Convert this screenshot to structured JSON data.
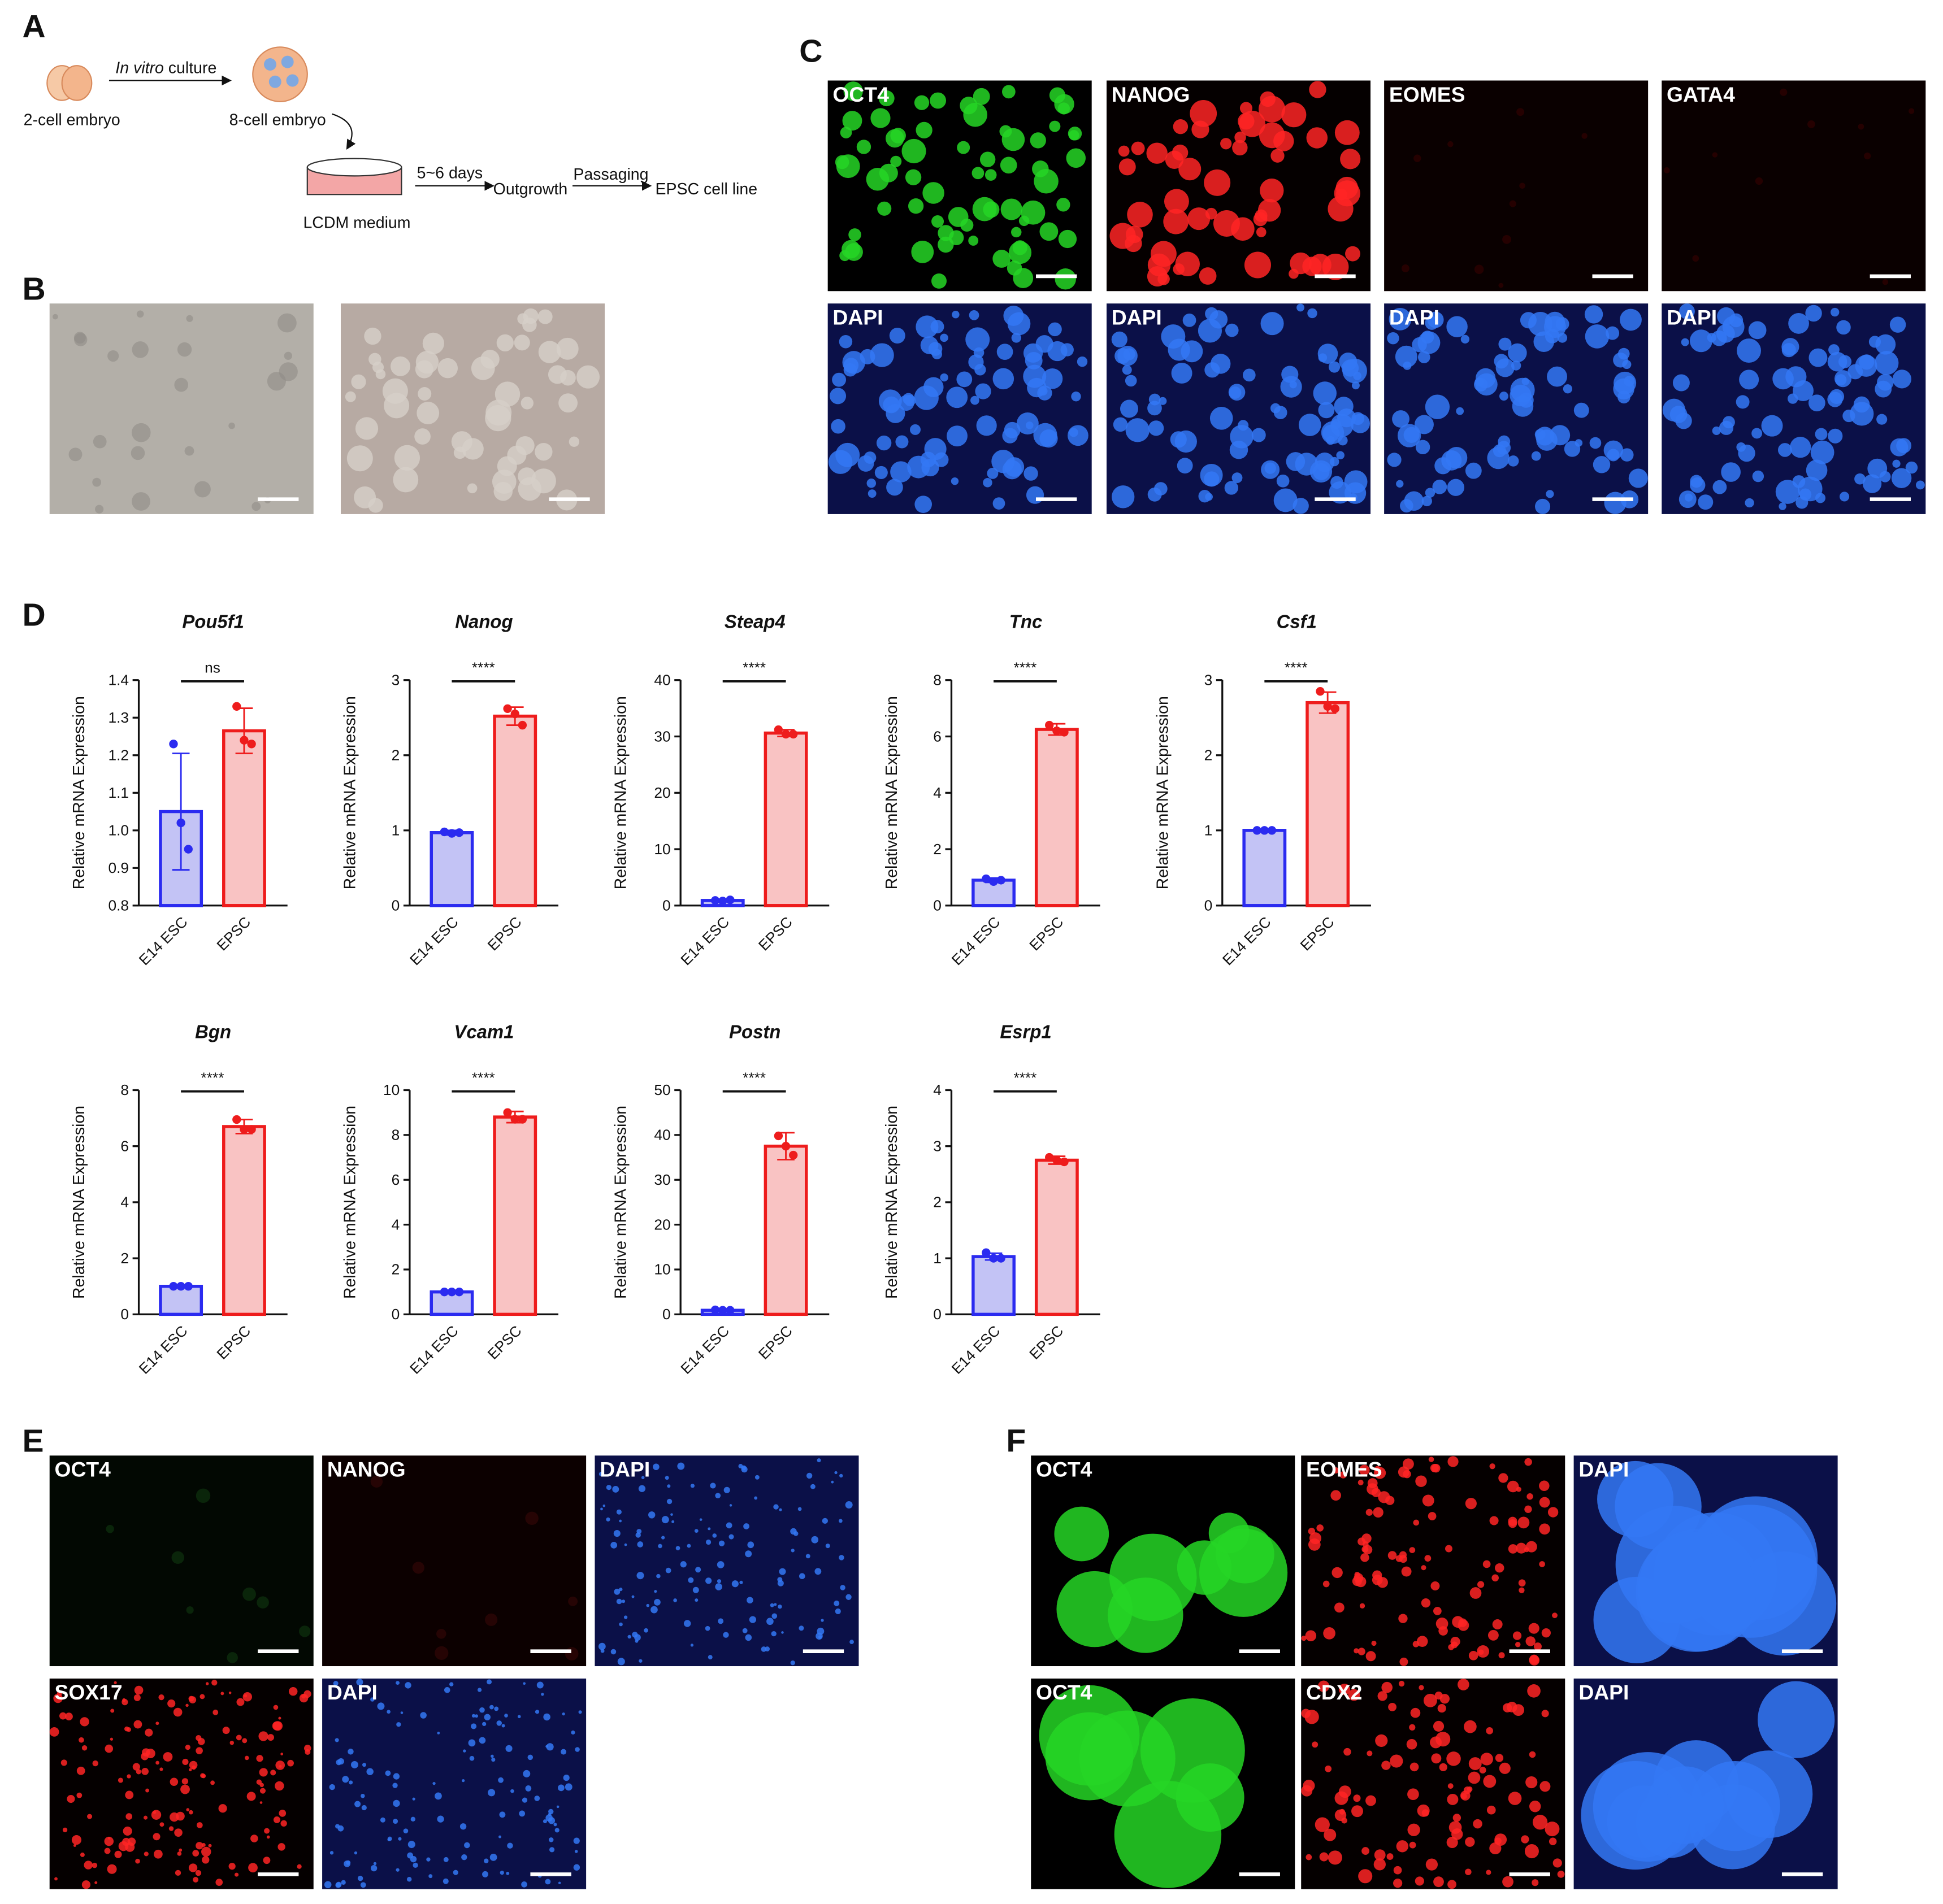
{
  "panel_labels": [
    "A",
    "B",
    "C",
    "D",
    "E",
    "F"
  ],
  "panel_a": {
    "stage1": "2-cell embryo",
    "step1_italic": "In vitro",
    "step1_rest": " culture",
    "stage2": "8-cell embryo",
    "medium": "LCDM medium",
    "step2": "5~6 days",
    "stage3": "Outgrowth",
    "step3": "Passaging",
    "stage4": "EPSC cell line"
  },
  "panel_c": {
    "labels": [
      "OCT4",
      "NANOG",
      "EOMES",
      "GATA4",
      "DAPI",
      "DAPI",
      "DAPI",
      "DAPI"
    ]
  },
  "panel_e": {
    "labels": [
      "OCT4",
      "NANOG",
      "DAPI",
      "SOX17",
      "DAPI"
    ]
  },
  "panel_f": {
    "labels": [
      "OCT4",
      "EOMES",
      "DAPI",
      "OCT4",
      "CDX2",
      "DAPI"
    ]
  },
  "chart_data": [
    {
      "type": "bar",
      "title": "Pou5f1",
      "ylabel": "Relative mRNA Expression",
      "annotation": "ns",
      "categories": [
        "E14 ESC",
        "EPSC"
      ],
      "values": [
        1.05,
        1.265
      ],
      "errors": [
        0.155,
        0.06
      ],
      "points": [
        [
          1.23,
          1.02,
          0.95
        ],
        [
          1.33,
          1.24,
          1.23
        ]
      ],
      "colors": [
        "#2b2bf0",
        "#ee1c1c"
      ],
      "fill_colors": [
        "#c3c3f5",
        "#f9c3c3"
      ],
      "ylim": [
        0.8,
        1.4
      ],
      "yticks": [
        0.8,
        0.9,
        {
          "value": 1,
          "label": "1.0"
        },
        1.1,
        1.2,
        1.3,
        1.4
      ]
    },
    {
      "type": "bar",
      "title": "Nanog",
      "ylabel": "Relative mRNA Expression",
      "annotation": "****",
      "categories": [
        "E14 ESC",
        "EPSC"
      ],
      "values": [
        0.97,
        2.52
      ],
      "errors": [
        0.03,
        0.12
      ],
      "points": [
        [
          0.98,
          0.96,
          0.97
        ],
        [
          2.62,
          2.55,
          2.4
        ]
      ],
      "colors": [
        "#2b2bf0",
        "#ee1c1c"
      ],
      "fill_colors": [
        "#c3c3f5",
        "#f9c3c3"
      ],
      "ylim": [
        0,
        3
      ],
      "yticks": [
        0,
        1,
        2,
        3
      ]
    },
    {
      "type": "bar",
      "title": "Steap4",
      "ylabel": "Relative mRNA Expression",
      "annotation": "****",
      "categories": [
        "E14 ESC",
        "EPSC"
      ],
      "values": [
        0.9,
        30.6
      ],
      "errors": [
        0.1,
        0.6
      ],
      "points": [
        [
          0.9,
          0.8,
          1.0
        ],
        [
          31.2,
          30.4,
          30.4
        ]
      ],
      "colors": [
        "#2b2bf0",
        "#ee1c1c"
      ],
      "fill_colors": [
        "#c3c3f5",
        "#f9c3c3"
      ],
      "ylim": [
        0,
        40
      ],
      "yticks": [
        0,
        10,
        20,
        30,
        40
      ]
    },
    {
      "type": "bar",
      "title": "Tnc",
      "ylabel": "Relative mRNA Expression",
      "annotation": "****",
      "categories": [
        "E14 ESC",
        "EPSC"
      ],
      "values": [
        0.9,
        6.25
      ],
      "errors": [
        0.08,
        0.2
      ],
      "points": [
        [
          0.95,
          0.85,
          0.9
        ],
        [
          6.4,
          6.2,
          6.15
        ]
      ],
      "colors": [
        "#2b2bf0",
        "#ee1c1c"
      ],
      "fill_colors": [
        "#c3c3f5",
        "#f9c3c3"
      ],
      "ylim": [
        0,
        8
      ],
      "yticks": [
        0,
        2,
        4,
        6,
        8
      ]
    },
    {
      "type": "bar",
      "title": "Csf1",
      "ylabel": "Relative mRNA Expression",
      "annotation": "****",
      "categories": [
        "E14 ESC",
        "EPSC"
      ],
      "values": [
        1.0,
        2.7
      ],
      "errors": [
        0.01,
        0.14
      ],
      "points": [
        [
          1.0,
          1.0,
          1.0
        ],
        [
          2.85,
          2.65,
          2.62
        ]
      ],
      "colors": [
        "#2b2bf0",
        "#ee1c1c"
      ],
      "fill_colors": [
        "#c3c3f5",
        "#f9c3c3"
      ],
      "ylim": [
        0,
        3
      ],
      "yticks": [
        0,
        1,
        2,
        3
      ]
    },
    {
      "type": "bar",
      "title": "Bgn",
      "ylabel": "Relative mRNA Expression",
      "annotation": "****",
      "categories": [
        "E14 ESC",
        "EPSC"
      ],
      "values": [
        1.0,
        6.7
      ],
      "errors": [
        0.02,
        0.25
      ],
      "points": [
        [
          1.0,
          1.0,
          1.0
        ],
        [
          6.95,
          6.6,
          6.6
        ]
      ],
      "colors": [
        "#2b2bf0",
        "#ee1c1c"
      ],
      "fill_colors": [
        "#c3c3f5",
        "#f9c3c3"
      ],
      "ylim": [
        0,
        8
      ],
      "yticks": [
        0,
        2,
        4,
        6,
        8
      ]
    },
    {
      "type": "bar",
      "title": "Vcam1",
      "ylabel": "Relative mRNA Expression",
      "annotation": "****",
      "categories": [
        "E14 ESC",
        "EPSC"
      ],
      "values": [
        1.0,
        8.8
      ],
      "errors": [
        0.02,
        0.25
      ],
      "points": [
        [
          1.0,
          1.0,
          1.0
        ],
        [
          9.0,
          8.7,
          8.7
        ]
      ],
      "colors": [
        "#2b2bf0",
        "#ee1c1c"
      ],
      "fill_colors": [
        "#c3c3f5",
        "#f9c3c3"
      ],
      "ylim": [
        0,
        10
      ],
      "yticks": [
        0,
        2,
        4,
        6,
        8,
        10
      ]
    },
    {
      "type": "bar",
      "title": "Postn",
      "ylabel": "Relative mRNA Expression",
      "annotation": "****",
      "categories": [
        "E14 ESC",
        "EPSC"
      ],
      "values": [
        0.9,
        37.5
      ],
      "errors": [
        0.1,
        3
      ],
      "points": [
        [
          1.0,
          0.9,
          0.9
        ],
        [
          39.8,
          37.5,
          35.5
        ]
      ],
      "colors": [
        "#2b2bf0",
        "#ee1c1c"
      ],
      "fill_colors": [
        "#c3c3f5",
        "#f9c3c3"
      ],
      "ylim": [
        0,
        50
      ],
      "yticks": [
        0,
        10,
        20,
        30,
        40,
        50
      ]
    },
    {
      "type": "bar",
      "title": "Esrp1",
      "ylabel": "Relative mRNA Expression",
      "annotation": "****",
      "categories": [
        "E14 ESC",
        "EPSC"
      ],
      "values": [
        1.03,
        2.75
      ],
      "errors": [
        0.06,
        0.07
      ],
      "points": [
        [
          1.1,
          1.0,
          1.0
        ],
        [
          2.8,
          2.75,
          2.72
        ]
      ],
      "colors": [
        "#2b2bf0",
        "#ee1c1c"
      ],
      "fill_colors": [
        "#c3c3f5",
        "#f9c3c3"
      ],
      "ylim": [
        0,
        4
      ],
      "yticks": [
        0,
        1,
        2,
        3,
        4
      ]
    }
  ]
}
